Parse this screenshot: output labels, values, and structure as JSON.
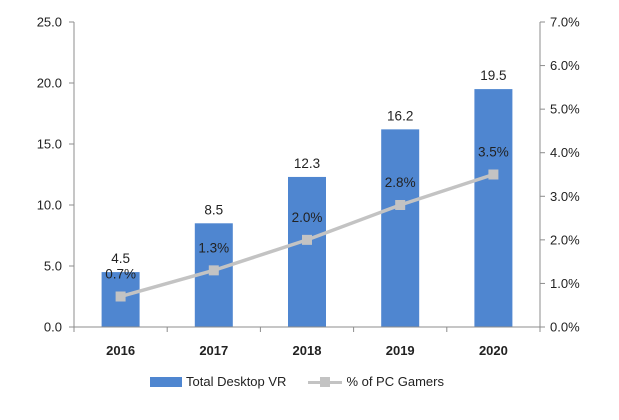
{
  "colors": {
    "bar": "#4f86d0",
    "line": "#c3c3c3",
    "axis": "#8c8c8c"
  },
  "chart_data": {
    "type": "bar",
    "categories": [
      "2016",
      "2017",
      "2018",
      "2019",
      "2020"
    ],
    "series": [
      {
        "name": "Total Desktop VR",
        "kind": "bar",
        "axis": "left",
        "values": [
          4.5,
          8.5,
          12.3,
          16.2,
          19.5
        ],
        "labels": [
          "4.5",
          "8.5",
          "12.3",
          "16.2",
          "19.5"
        ]
      },
      {
        "name": "% of PC Gamers",
        "kind": "line",
        "axis": "right",
        "values": [
          0.7,
          1.3,
          2.0,
          2.8,
          3.5
        ],
        "labels": [
          "0.7%",
          "1.3%",
          "2.0%",
          "2.8%",
          "3.5%"
        ]
      }
    ],
    "left_axis": {
      "min": 0,
      "max": 25,
      "ticks": [
        "0.0",
        "5.0",
        "10.0",
        "15.0",
        "20.0",
        "25.0"
      ]
    },
    "right_axis": {
      "min": 0,
      "max": 7,
      "ticks": [
        "0.0%",
        "1.0%",
        "2.0%",
        "3.0%",
        "4.0%",
        "5.0%",
        "6.0%",
        "7.0%"
      ]
    },
    "title": "",
    "xlabel": "",
    "ylabel": "",
    "legend_position": "bottom",
    "grid": false
  }
}
